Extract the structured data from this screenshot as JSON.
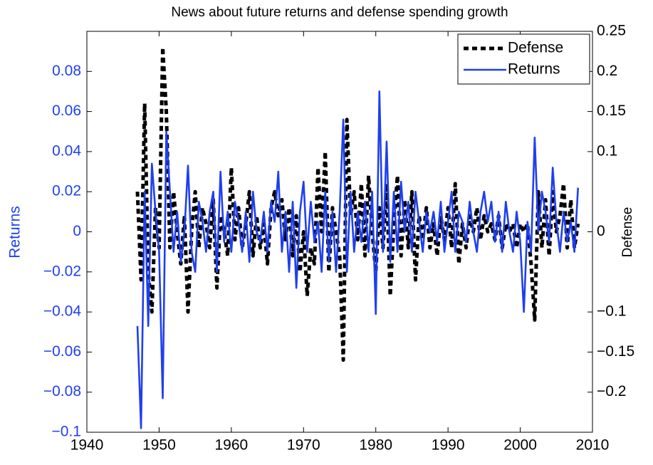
{
  "chart_data": {
    "type": "line",
    "title": "News about future returns and defense spending growth",
    "ylabel": "Returns",
    "y2label": "Defense",
    "legend": "upper right",
    "grid": false,
    "xlim": [
      1940,
      2010
    ],
    "xticks": [
      1940,
      1950,
      1960,
      1970,
      1980,
      1990,
      2000,
      2010
    ],
    "ylim": [
      -0.1,
      0.1
    ],
    "yticks": [
      {
        "value": -0.1,
        "label": "−0.1"
      },
      {
        "value": -0.08,
        "label": "−0.08"
      },
      {
        "value": -0.06,
        "label": "−0.06"
      },
      {
        "value": -0.04,
        "label": "−0.04"
      },
      {
        "value": -0.02,
        "label": "−0.02"
      },
      0,
      0.02,
      0.04,
      0.06,
      0.08
    ],
    "y2lim": [
      -0.25,
      0.25
    ],
    "y2ticks": [
      {
        "value": -0.2,
        "label": "−0.2"
      },
      {
        "value": -0.15,
        "label": "−0.15"
      },
      {
        "value": -0.1,
        "label": "−0.1"
      },
      0,
      0.1,
      0.15,
      0.2,
      0.25
    ],
    "x": [
      1947,
      1947.5,
      1948,
      1948.5,
      1949,
      1949.5,
      1950,
      1950.5,
      1951,
      1951.5,
      1952,
      1952.5,
      1953,
      1953.5,
      1954,
      1954.5,
      1955,
      1955.5,
      1956,
      1956.5,
      1957,
      1957.5,
      1958,
      1958.5,
      1959,
      1959.5,
      1960,
      1960.5,
      1961,
      1961.5,
      1962,
      1962.5,
      1963,
      1963.5,
      1964,
      1964.5,
      1965,
      1965.5,
      1966,
      1966.5,
      1967,
      1967.5,
      1968,
      1968.5,
      1969,
      1969.5,
      1970,
      1970.5,
      1971,
      1971.5,
      1972,
      1972.5,
      1973,
      1973.5,
      1974,
      1974.5,
      1975,
      1975.5,
      1976,
      1976.5,
      1977,
      1977.5,
      1978,
      1978.5,
      1979,
      1979.5,
      1980,
      1980.5,
      1981,
      1981.5,
      1982,
      1982.5,
      1983,
      1983.5,
      1984,
      1984.5,
      1985,
      1985.5,
      1986,
      1986.5,
      1987,
      1987.5,
      1988,
      1988.5,
      1989,
      1989.5,
      1990,
      1990.5,
      1991,
      1991.5,
      1992,
      1992.5,
      1993,
      1993.5,
      1994,
      1994.5,
      1995,
      1995.5,
      1996,
      1996.5,
      1997,
      1997.5,
      1998,
      1998.5,
      1999,
      1999.5,
      2000,
      2000.5,
      2001,
      2001.5,
      2002,
      2002.5,
      2003,
      2003.5,
      2004,
      2004.5,
      2005,
      2005.5,
      2006,
      2006.5,
      2007,
      2007.5,
      2008
    ],
    "series": [
      {
        "name": "Defense",
        "color": "#000000",
        "dash": true,
        "axis": "y2",
        "values": [
          0.05,
          -0.06,
          0.16,
          -0.05,
          -0.1,
          0.03,
          -0.02,
          0.23,
          0.15,
          -0.02,
          0.05,
          0,
          -0.04,
          0.02,
          -0.1,
          0,
          0.05,
          -0.02,
          0.03,
          0.01,
          -0.02,
          0.04,
          -0.07,
          0.02,
          0,
          -0.03,
          0.08,
          -0.01,
          0.03,
          -0.02,
          0.01,
          0.05,
          -0.03,
          0.02,
          -0.02,
          0.01,
          -0.04,
          0.03,
          0.05,
          0.02,
          0.04,
          -0.01,
          0.03,
          -0.03,
          0.02,
          -0.05,
          0,
          -0.08,
          -0.02,
          -0.04,
          0.08,
          0,
          0.1,
          -0.05,
          0.03,
          0,
          -0.03,
          -0.16,
          0.14,
          0.02,
          0.05,
          -0.01,
          0.06,
          -0.03,
          0.07,
          0,
          -0.05,
          0.03,
          -0.02,
          0.06,
          -0.08,
          0.01,
          0.07,
          -0.03,
          0.04,
          -0.02,
          0.05,
          -0.06,
          0.02,
          -0.01,
          0.03,
          -0.02,
          0.01,
          -0.03,
          0.02,
          -0.01,
          0.03,
          -0.02,
          0.06,
          -0.04,
          0.01,
          -0.02,
          0.02,
          0,
          0.03,
          -0.01,
          0.02,
          0,
          0.01,
          -0.01,
          0.02,
          -0.02,
          0.01,
          0,
          0.01,
          -0.02,
          0.01,
          0,
          0.01,
          -0.04,
          -0.11,
          0.05,
          -0.02,
          0.04,
          -0.03,
          0.05,
          0,
          0.02,
          0.06,
          -0.02,
          0.04,
          -0.02,
          0.01
        ]
      },
      {
        "name": "Returns",
        "color": "#1f3ff0",
        "dash": false,
        "axis": "y",
        "values": [
          -0.047,
          -0.098,
          0.02,
          -0.047,
          0.034,
          0.01,
          -0.01,
          -0.083,
          0.05,
          0.02,
          -0.01,
          0.01,
          -0.015,
          0,
          0.033,
          -0.01,
          -0.02,
          0.015,
          0.005,
          -0.01,
          0.01,
          0.02,
          -0.02,
          0.03,
          -0.005,
          0.01,
          -0.01,
          0.015,
          0.005,
          -0.01,
          0.01,
          -0.015,
          0.02,
          0,
          -0.005,
          0.01,
          -0.01,
          0.015,
          0.005,
          0.03,
          -0.01,
          0.01,
          -0.02,
          0.015,
          -0.028,
          0.01,
          0.025,
          -0.01,
          0.015,
          -0.005,
          0.005,
          -0.02,
          0.02,
          -0.015,
          0.01,
          -0.02,
          0.01,
          0.056,
          -0.02,
          0.02,
          -0.01,
          0.01,
          -0.005,
          0.015,
          -0.01,
          0.02,
          -0.041,
          0.07,
          -0.01,
          0.045,
          -0.015,
          0.02,
          -0.01,
          0.025,
          0,
          0.015,
          -0.01,
          0.02,
          0.005,
          -0.01,
          0.01,
          0,
          0.01,
          -0.005,
          0.015,
          -0.01,
          0.005,
          0.02,
          -0.01,
          0.01,
          0.005,
          -0.005,
          0.015,
          0,
          -0.01,
          0.01,
          0.02,
          0.005,
          0.015,
          -0.005,
          0.01,
          -0.01,
          0.015,
          0,
          -0.01,
          0.01,
          -0.005,
          -0.04,
          0.005,
          -0.01,
          0.047,
          0,
          0.02,
          0.01,
          -0.005,
          0.032,
          0.005,
          -0.01,
          0.01,
          -0.005,
          0.005,
          -0.01,
          0.022
        ]
      }
    ]
  }
}
